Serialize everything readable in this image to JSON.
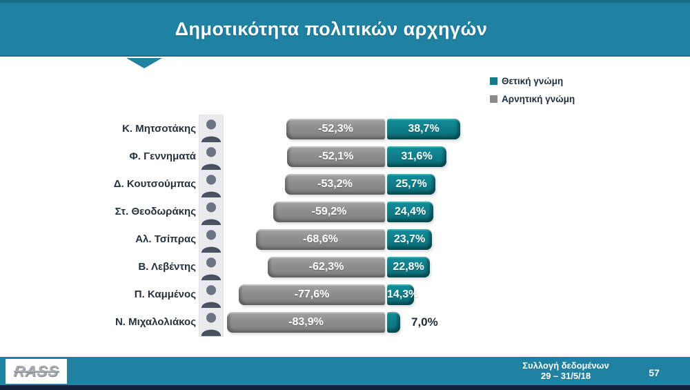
{
  "title": "Δημοτικότητα πολιτικών αρχηγών",
  "legend": {
    "positive": "Θετική γνώμη",
    "negative": "Αρνητική γνώμη"
  },
  "colors": {
    "banner_teal": "#1f82a2",
    "positive_bar": "#0e7d89",
    "negative_bar": "#8e8e8e",
    "bottom_strip": "#15223b",
    "label_text": "#25313e"
  },
  "chart_data": {
    "type": "bar",
    "orientation": "horizontal-diverging",
    "unit": "%",
    "xlim": [
      -100,
      50
    ],
    "legend_position": "top-right",
    "series": [
      {
        "name": "Θετική γνώμη",
        "color": "#0e7d89"
      },
      {
        "name": "Αρνητική γνώμη",
        "color": "#8e8e8e"
      }
    ],
    "rows": [
      {
        "name": "Κ. Μητσοτάκης",
        "negative": -52.3,
        "positive": 38.7,
        "negative_label": "-52,3%",
        "positive_label": "38,7%"
      },
      {
        "name": "Φ. Γεννηματά",
        "negative": -52.1,
        "positive": 31.6,
        "negative_label": "-52,1%",
        "positive_label": "31,6%"
      },
      {
        "name": "Δ. Κουτσούμπας",
        "negative": -53.2,
        "positive": 25.7,
        "negative_label": "-53,2%",
        "positive_label": "25,7%"
      },
      {
        "name": "Στ. Θεοδωράκης",
        "negative": -59.2,
        "positive": 24.4,
        "negative_label": "-59,2%",
        "positive_label": "24,4%"
      },
      {
        "name": "Αλ. Τσίπρας",
        "negative": -68.6,
        "positive": 23.7,
        "negative_label": "-68,6%",
        "positive_label": "23,7%"
      },
      {
        "name": "Β. Λεβέντης",
        "negative": -62.3,
        "positive": 22.8,
        "negative_label": "-62,3%",
        "positive_label": "22,8%"
      },
      {
        "name": "Π. Καμμένος",
        "negative": -77.6,
        "positive": 14.3,
        "negative_label": "-77,6%",
        "positive_label": "14,3%"
      },
      {
        "name": "Ν. Μιχαλολιάκος",
        "negative": -83.9,
        "positive": 7.0,
        "negative_label": "-83,9%",
        "positive_label": "7,0%"
      }
    ]
  },
  "footer": {
    "logo": "RASS",
    "line1": "Συλλογή δεδομένων",
    "line2": "29 – 31/5/18",
    "page": "57"
  }
}
